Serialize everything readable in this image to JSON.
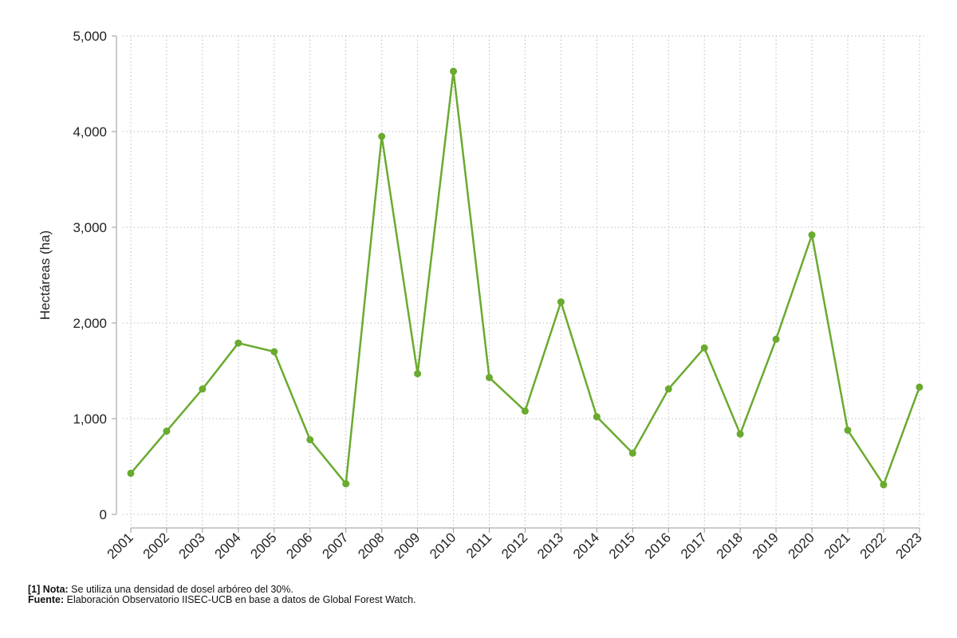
{
  "chart_data": {
    "type": "line",
    "ylabel": "Hectáreas (ha)",
    "xlabel": "",
    "x": [
      "2001",
      "2002",
      "2003",
      "2004",
      "2005",
      "2006",
      "2007",
      "2008",
      "2009",
      "2010",
      "2011",
      "2012",
      "2013",
      "2014",
      "2015",
      "2016",
      "2017",
      "2018",
      "2019",
      "2020",
      "2021",
      "2022",
      "2023"
    ],
    "series": [
      {
        "values": [
          430,
          870,
          1310,
          1790,
          1700,
          780,
          320,
          3950,
          1470,
          4630,
          1430,
          1080,
          2220,
          1020,
          640,
          1310,
          1740,
          840,
          1830,
          2920,
          880,
          310,
          1330
        ]
      }
    ],
    "ylim": [
      0,
      5000
    ],
    "yticks": [
      "0",
      "1,000",
      "2,000",
      "3,000",
      "4,000",
      "5,000"
    ],
    "grid": true,
    "color": "#6aaa2f"
  },
  "notes": {
    "nota_label": "[1] Nota:",
    "nota_text": " Se utiliza una densidad de dosel arbóreo del 30%.",
    "fuente_label": "Fuente:",
    "fuente_text": " Elaboración Observatorio IISEC-UCB en base a datos de Global Forest Watch."
  }
}
